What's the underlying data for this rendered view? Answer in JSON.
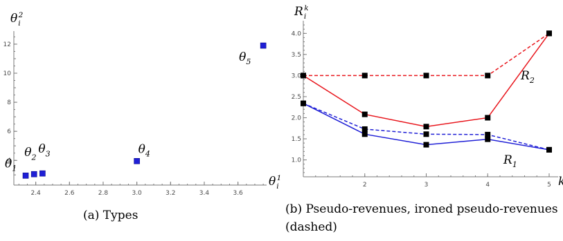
{
  "chart_data": [
    {
      "type": "scatter",
      "title": "",
      "xlabel": "θi1",
      "ylabel": "θi2",
      "xlim": [
        2.27,
        3.77
      ],
      "ylim": [
        2.3,
        12.9
      ],
      "x_ticks": [
        "2.4",
        "2.6",
        "2.8",
        "3.0",
        "3.2",
        "3.4",
        "3.6"
      ],
      "y_ticks": [
        "4",
        "6",
        "8",
        "10",
        "12"
      ],
      "series": [
        {
          "color": "#1f1fd6",
          "points": [
            {
              "label": "θ1",
              "x": 2.34,
              "y": 2.95
            },
            {
              "label": "θ2",
              "x": 2.39,
              "y": 3.05
            },
            {
              "label": "θ3",
              "x": 2.44,
              "y": 3.1
            },
            {
              "label": "θ4",
              "x": 3.0,
              "y": 3.95
            },
            {
              "label": "θ5",
              "x": 3.75,
              "y": 11.9
            }
          ]
        }
      ],
      "caption": "(a) Types"
    },
    {
      "type": "line",
      "title": "",
      "xlabel": "k",
      "ylabel": "Rik",
      "x": [
        1,
        2,
        3,
        4,
        5
      ],
      "xlim": [
        1,
        5
      ],
      "ylim": [
        0.6,
        4.3
      ],
      "x_ticks": [
        "2",
        "3",
        "4",
        "5"
      ],
      "y_ticks": [
        "1.0",
        "1.5",
        "2.0",
        "2.5",
        "3.0",
        "3.5",
        "4.0"
      ],
      "series": [
        {
          "label": "R2",
          "style": "solid",
          "color": "#e8141b",
          "values": [
            3.0,
            2.08,
            1.79,
            2.0,
            4.0
          ]
        },
        {
          "label": "",
          "style": "dashed",
          "color": "#e8141b",
          "values": [
            3.0,
            3.0,
            3.0,
            3.0,
            4.0
          ]
        },
        {
          "label": "R1",
          "style": "solid",
          "color": "#1f1fd6",
          "values": [
            2.34,
            1.61,
            1.36,
            1.49,
            1.24
          ]
        },
        {
          "label": "",
          "style": "dashed",
          "color": "#1f1fd6",
          "values": [
            2.34,
            1.73,
            1.61,
            1.6,
            1.24
          ]
        }
      ],
      "caption": "(b) Pseudo-revenues, ironed pseudo-revenues (dashed)"
    }
  ]
}
